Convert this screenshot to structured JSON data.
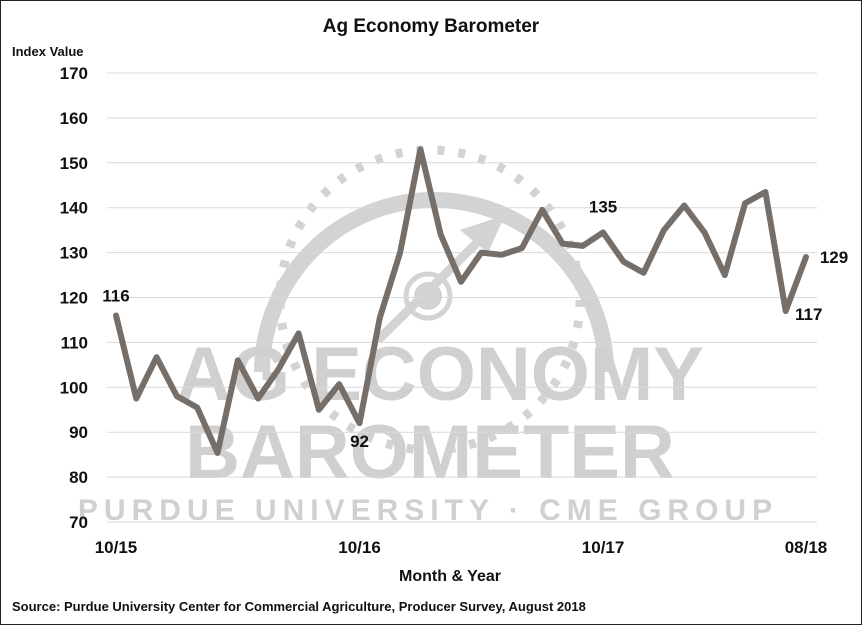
{
  "chart_data": {
    "type": "line",
    "title": "Ag Economy Barometer",
    "xlabel": "Month & Year",
    "ylabel": "Index Value",
    "ylim": [
      70,
      170
    ],
    "yticks": [
      70,
      80,
      90,
      100,
      110,
      120,
      130,
      140,
      150,
      160,
      170
    ],
    "grid": true,
    "x_tick_labels": [
      {
        "label": "10/15",
        "index": 0
      },
      {
        "label": "10/16",
        "index": 12
      },
      {
        "label": "10/17",
        "index": 24
      },
      {
        "label": "08/18",
        "index": 34
      }
    ],
    "series": [
      {
        "name": "Ag Economy Barometer",
        "color": "#756e69",
        "values": [
          116,
          97.5,
          106.7,
          98,
          95.5,
          85.4,
          106,
          97.5,
          104,
          112,
          95,
          100.7,
          92,
          115.5,
          130,
          153,
          134,
          123.5,
          130,
          129.5,
          131,
          139.5,
          132,
          131.5,
          134.5,
          128,
          125.5,
          135,
          140.5,
          134.5,
          125,
          141,
          143.5,
          117,
          129
        ]
      }
    ],
    "annotations": [
      {
        "label": "116",
        "index": 0
      },
      {
        "label": "92",
        "index": 12
      },
      {
        "label": "135",
        "index": 24
      },
      {
        "label": "117",
        "index": 33
      },
      {
        "label": "129",
        "index": 34
      }
    ],
    "source": "Source: Purdue University Center for Commercial Agriculture, Producer Survey, August 2018",
    "watermark": [
      "AG ECONOMY",
      "BAROMETER",
      "PURDUE UNIVERSITY · CME GROUP"
    ]
  },
  "labels": {
    "title": "Ag Economy Barometer",
    "ylabel": "Index Value",
    "xlabel": "Month & Year",
    "source": "Source: Purdue University Center for Commercial Agriculture, Producer Survey, August 2018",
    "wm1": "AG ECONOMY",
    "wm2": "BAROMETER",
    "wm3": "PURDUE UNIVERSITY  ·  CME GROUP"
  }
}
